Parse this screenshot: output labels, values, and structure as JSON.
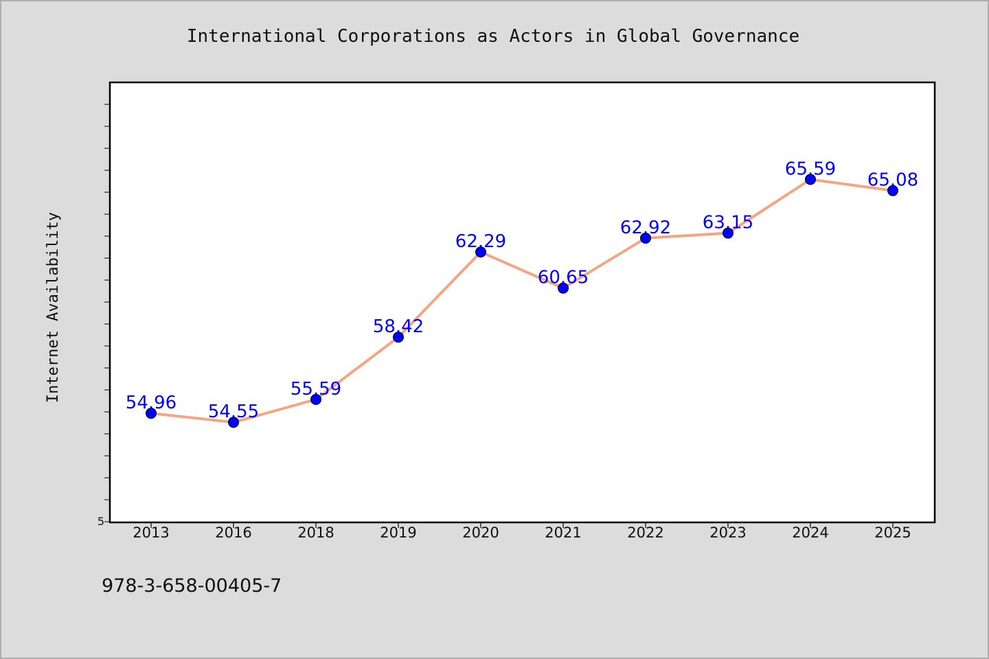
{
  "chart_data": {
    "type": "line",
    "title": "International Corporations as Actors in Global Governance",
    "xlabel": "",
    "ylabel": "Internet Availability",
    "categories": [
      "2013",
      "2016",
      "2018",
      "2019",
      "2020",
      "2021",
      "2022",
      "2023",
      "2024",
      "2025"
    ],
    "series": [
      {
        "values": [
          54.96,
          54.55,
          55.59,
          58.42,
          62.29,
          60.65,
          62.92,
          63.15,
          65.59,
          65.08
        ]
      }
    ],
    "data_labels": [
      "54.96",
      "54.55",
      "55.59",
      "58.42",
      "62.29",
      "60.65",
      "62.92",
      "63.15",
      "65.59",
      "65.08"
    ],
    "ytick_labels": [
      "5"
    ],
    "ylim": [
      50,
      70
    ],
    "grid": false,
    "colors": {
      "line": "#f4a582",
      "marker": "#0000ff",
      "label": "#0000ff"
    }
  },
  "footer": {
    "isbn": "978-3-658-00405-7"
  }
}
